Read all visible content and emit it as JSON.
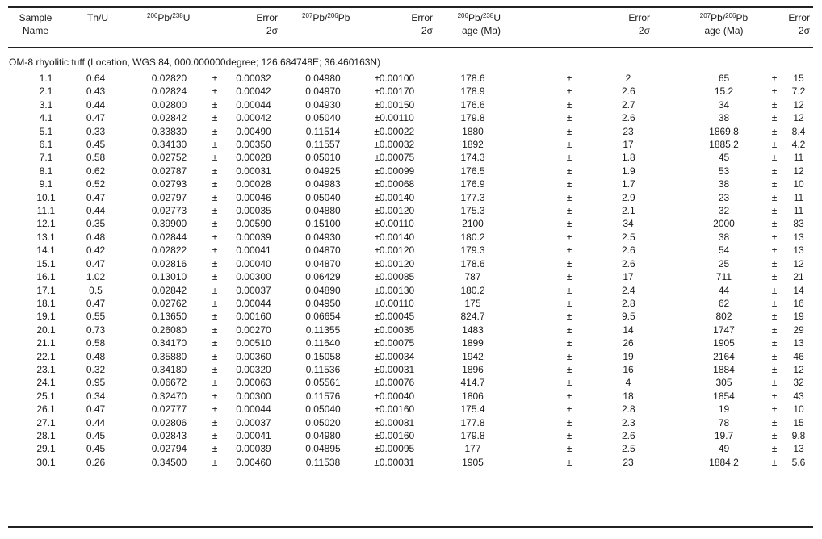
{
  "headers": {
    "sample": [
      "Sample",
      "Name"
    ],
    "thu": "Th/U",
    "pb206u238": {
      "a": "206",
      "b": "Pb/",
      "c": "238",
      "d": "U"
    },
    "err1": [
      "Error",
      "2σ"
    ],
    "pb207pb206": {
      "a": "207",
      "b": "Pb/",
      "c": "206",
      "d": "Pb"
    },
    "err2": [
      "Error",
      "2σ"
    ],
    "age1": {
      "a": "206",
      "b": "Pb/",
      "c": "238",
      "d": "U",
      "line2": "age (Ma)"
    },
    "err3": [
      "Error",
      "2σ"
    ],
    "age2": {
      "a": "207",
      "b": "Pb/",
      "c": "206",
      "d": "Pb",
      "line2": "age (Ma)"
    },
    "err4": [
      "Error",
      "2σ"
    ]
  },
  "section_label": "OM-8 rhyolitic tuff (Location, WGS 84, 000.000000degree; 126.684748E; 36.460163N)",
  "pm": "±",
  "rows": [
    [
      "1.1",
      "0.64",
      "0.02820",
      "0.00032",
      "0.04980",
      "0.00100",
      "178.6",
      "2",
      "65",
      "15"
    ],
    [
      "2.1",
      "0.43",
      "0.02824",
      "0.00042",
      "0.04970",
      "0.00170",
      "178.9",
      "2.6",
      "15.2",
      "7.2"
    ],
    [
      "3.1",
      "0.44",
      "0.02800",
      "0.00044",
      "0.04930",
      "0.00150",
      "176.6",
      "2.7",
      "34",
      "12"
    ],
    [
      "4.1",
      "0.47",
      "0.02842",
      "0.00042",
      "0.05040",
      "0.00110",
      "179.8",
      "2.6",
      "38",
      "12"
    ],
    [
      "5.1",
      "0.33",
      "0.33830",
      "0.00490",
      "0.11514",
      "0.00022",
      "1880",
      "23",
      "1869.8",
      "8.4"
    ],
    [
      "6.1",
      "0.45",
      "0.34130",
      "0.00350",
      "0.11557",
      "0.00032",
      "1892",
      "17",
      "1885.2",
      "4.2"
    ],
    [
      "7.1",
      "0.58",
      "0.02752",
      "0.00028",
      "0.05010",
      "0.00075",
      "174.3",
      "1.8",
      "45",
      "11"
    ],
    [
      "8.1",
      "0.62",
      "0.02787",
      "0.00031",
      "0.04925",
      "0.00099",
      "176.5",
      "1.9",
      "53",
      "12"
    ],
    [
      "9.1",
      "0.52",
      "0.02793",
      "0.00028",
      "0.04983",
      "0.00068",
      "176.9",
      "1.7",
      "38",
      "10"
    ],
    [
      "10.1",
      "0.47",
      "0.02797",
      "0.00046",
      "0.05040",
      "0.00140",
      "177.3",
      "2.9",
      "23",
      "11"
    ],
    [
      "11.1",
      "0.44",
      "0.02773",
      "0.00035",
      "0.04880",
      "0.00120",
      "175.3",
      "2.1",
      "32",
      "11"
    ],
    [
      "12.1",
      "0.35",
      "0.39900",
      "0.00590",
      "0.15100",
      "0.00110",
      "2100",
      "34",
      "2000",
      "83"
    ],
    [
      "13.1",
      "0.48",
      "0.02844",
      "0.00039",
      "0.04930",
      "0.00140",
      "180.2",
      "2.5",
      "38",
      "13"
    ],
    [
      "14.1",
      "0.42",
      "0.02822",
      "0.00041",
      "0.04870",
      "0.00120",
      "179.3",
      "2.6",
      "54",
      "13"
    ],
    [
      "15.1",
      "0.47",
      "0.02816",
      "0.00040",
      "0.04870",
      "0.00120",
      "178.6",
      "2.6",
      "25",
      "12"
    ],
    [
      "16.1",
      "1.02",
      "0.13010",
      "0.00300",
      "0.06429",
      "0.00085",
      "787",
      "17",
      "711",
      "21"
    ],
    [
      "17.1",
      "0.5",
      "0.02842",
      "0.00037",
      "0.04890",
      "0.00130",
      "180.2",
      "2.4",
      "44",
      "14"
    ],
    [
      "18.1",
      "0.47",
      "0.02762",
      "0.00044",
      "0.04950",
      "0.00110",
      "175",
      "2.8",
      "62",
      "16"
    ],
    [
      "19.1",
      "0.55",
      "0.13650",
      "0.00160",
      "0.06654",
      "0.00045",
      "824.7",
      "9.5",
      "802",
      "19"
    ],
    [
      "20.1",
      "0.73",
      "0.26080",
      "0.00270",
      "0.11355",
      "0.00035",
      "1483",
      "14",
      "1747",
      "29"
    ],
    [
      "21.1",
      "0.58",
      "0.34170",
      "0.00510",
      "0.11640",
      "0.00075",
      "1899",
      "26",
      "1905",
      "13"
    ],
    [
      "22.1",
      "0.48",
      "0.35880",
      "0.00360",
      "0.15058",
      "0.00034",
      "1942",
      "19",
      "2164",
      "46"
    ],
    [
      "23.1",
      "0.32",
      "0.34180",
      "0.00320",
      "0.11536",
      "0.00031",
      "1896",
      "16",
      "1884",
      "12"
    ],
    [
      "24.1",
      "0.95",
      "0.06672",
      "0.00063",
      "0.05561",
      "0.00076",
      "414.7",
      "4",
      "305",
      "32"
    ],
    [
      "25.1",
      "0.34",
      "0.32470",
      "0.00300",
      "0.11576",
      "0.00040",
      "1806",
      "18",
      "1854",
      "43"
    ],
    [
      "26.1",
      "0.47",
      "0.02777",
      "0.00044",
      "0.05040",
      "0.00160",
      "175.4",
      "2.8",
      "19",
      "10"
    ],
    [
      "27.1",
      "0.44",
      "0.02806",
      "0.00037",
      "0.05020",
      "0.00081",
      "177.8",
      "2.3",
      "78",
      "15"
    ],
    [
      "28.1",
      "0.45",
      "0.02843",
      "0.00041",
      "0.04980",
      "0.00160",
      "179.8",
      "2.6",
      "19.7",
      "9.8"
    ],
    [
      "29.1",
      "0.45",
      "0.02794",
      "0.00039",
      "0.04895",
      "0.00095",
      "177",
      "2.5",
      "49",
      "13"
    ],
    [
      "30.1",
      "0.26",
      "0.34500",
      "0.00460",
      "0.11538",
      "0.00031",
      "1905",
      "23",
      "1884.2",
      "5.6"
    ]
  ]
}
